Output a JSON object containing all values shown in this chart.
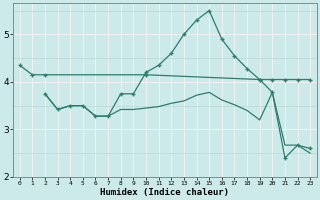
{
  "xlabel": "Humidex (Indice chaleur)",
  "xlim": [
    -0.5,
    23.5
  ],
  "ylim": [
    2.0,
    5.65
  ],
  "xticks": [
    0,
    1,
    2,
    3,
    4,
    5,
    6,
    7,
    8,
    9,
    10,
    11,
    12,
    13,
    14,
    15,
    16,
    17,
    18,
    19,
    20,
    21,
    22,
    23
  ],
  "yticks": [
    2,
    3,
    4,
    5
  ],
  "bg_color": "#cceaea",
  "line_color": "#2e7d6e",
  "grid_major_color": "#f0f0f0",
  "grid_minor_color": "#b8dada",
  "line1_x": [
    0,
    1,
    2,
    10,
    19,
    20,
    21,
    22,
    23
  ],
  "line1_y": [
    4.35,
    4.15,
    4.15,
    4.15,
    4.05,
    4.05,
    4.05,
    4.05,
    4.05
  ],
  "line2_x": [
    2,
    3,
    4,
    5,
    6,
    7,
    8,
    9,
    10,
    11,
    12,
    13,
    14,
    15,
    16,
    17,
    18,
    19,
    20,
    21,
    22,
    23
  ],
  "line2_y": [
    3.75,
    3.42,
    3.5,
    3.5,
    3.28,
    3.28,
    3.75,
    3.75,
    4.2,
    4.35,
    4.6,
    5.0,
    5.3,
    5.5,
    4.9,
    4.55,
    4.28,
    4.05,
    3.78,
    2.4,
    2.67,
    2.6
  ],
  "line3_x": [
    2,
    3,
    4,
    5,
    6,
    7,
    8,
    9,
    10,
    11,
    12,
    13,
    14,
    15,
    16,
    17,
    18,
    19,
    20,
    21,
    22,
    23
  ],
  "line3_y": [
    3.75,
    3.42,
    3.5,
    3.5,
    3.28,
    3.28,
    3.42,
    3.42,
    3.45,
    3.48,
    3.55,
    3.6,
    3.72,
    3.78,
    3.62,
    3.52,
    3.4,
    3.2,
    3.78,
    2.67,
    2.67,
    2.5
  ]
}
